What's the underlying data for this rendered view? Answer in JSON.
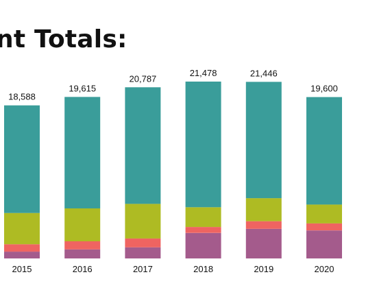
{
  "chart_data": {
    "type": "bar",
    "stacked": true,
    "title": "nt Totals:",
    "xlabel": "",
    "ylabel": "",
    "categories": [
      "2015",
      "2016",
      "2017",
      "2018",
      "2019",
      "2020"
    ],
    "totals": [
      "18,588",
      "19,615",
      "20,787",
      "21,478",
      "21,446",
      "19,600"
    ],
    "total_values": [
      18588,
      19615,
      20787,
      21478,
      21446,
      19600
    ],
    "series": [
      {
        "color": "#a45b8c",
        "values": [
          820,
          1100,
          1350,
          3100,
          3600,
          3400
        ]
      },
      {
        "color": "#ef6461",
        "values": [
          900,
          980,
          1080,
          720,
          920,
          850
        ]
      },
      {
        "color": "#aebb23",
        "values": [
          3800,
          4000,
          4200,
          2400,
          2800,
          2300
        ]
      },
      {
        "color": "#3a9d9a",
        "values": [
          13068,
          13535,
          14157,
          15258,
          14126,
          13050
        ]
      }
    ],
    "ylim": [
      0,
      21478
    ],
    "grid": false,
    "legend": "none"
  }
}
